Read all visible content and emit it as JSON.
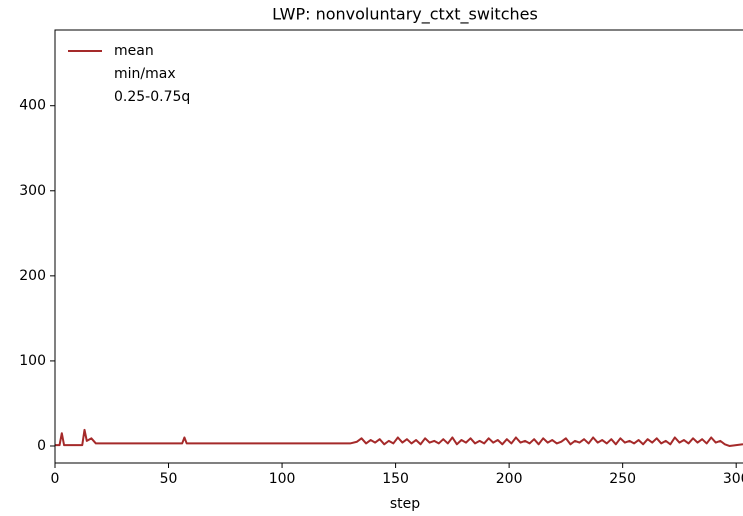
{
  "chart_data": {
    "type": "line",
    "title": "LWP: nonvoluntary_ctxt_switches",
    "x_label": "step",
    "x": [
      0,
      2,
      3,
      4,
      5,
      10,
      12,
      13,
      14,
      16,
      18,
      20,
      40,
      50,
      56,
      57,
      58,
      60,
      80,
      100,
      120,
      126,
      130,
      133,
      135,
      137,
      139,
      141,
      143,
      145,
      147,
      149,
      151,
      153,
      155,
      157,
      159,
      161,
      163,
      165,
      167,
      169,
      171,
      173,
      175,
      177,
      179,
      181,
      183,
      185,
      187,
      189,
      191,
      193,
      195,
      197,
      199,
      201,
      203,
      205,
      207,
      209,
      211,
      213,
      215,
      217,
      219,
      221,
      223,
      225,
      227,
      229,
      231,
      233,
      235,
      237,
      239,
      241,
      243,
      245,
      247,
      249,
      251,
      253,
      255,
      257,
      259,
      261,
      263,
      265,
      267,
      269,
      271,
      273,
      275,
      277,
      279,
      281,
      283,
      285,
      287,
      289,
      291,
      293,
      295,
      297,
      300,
      303
    ],
    "series": [
      {
        "name": "mean",
        "color": "#a52a2a",
        "values": [
          1,
          1,
          15,
          1,
          1,
          1,
          1,
          19,
          6,
          9,
          3,
          3,
          3,
          3,
          3,
          10,
          3,
          3,
          3,
          3,
          3,
          3,
          3,
          5,
          9,
          3,
          7,
          4,
          8,
          2,
          6,
          3,
          10,
          4,
          8,
          3,
          7,
          2,
          9,
          4,
          6,
          3,
          8,
          3,
          10,
          2,
          7,
          4,
          9,
          3,
          6,
          3,
          9,
          4,
          7,
          2,
          8,
          3,
          10,
          4,
          6,
          3,
          8,
          2,
          9,
          4,
          7,
          3,
          5,
          9,
          2,
          6,
          4,
          8,
          3,
          10,
          4,
          7,
          3,
          8,
          2,
          9,
          4,
          6,
          3,
          7,
          2,
          8,
          4,
          9,
          3,
          6,
          2,
          10,
          4,
          7,
          3,
          9,
          4,
          8,
          3,
          10,
          4,
          6,
          2,
          0,
          1,
          2
        ]
      }
    ],
    "legend_extra": [
      "min/max",
      "0.25-0.75q"
    ],
    "legend_loc": "upper left",
    "xlim": [
      0,
      303
    ],
    "ylim": [
      -20,
      489
    ],
    "xticks": [
      0,
      50,
      100,
      150,
      200,
      250,
      300
    ],
    "yticks": [
      0,
      100,
      200,
      300,
      400
    ]
  }
}
